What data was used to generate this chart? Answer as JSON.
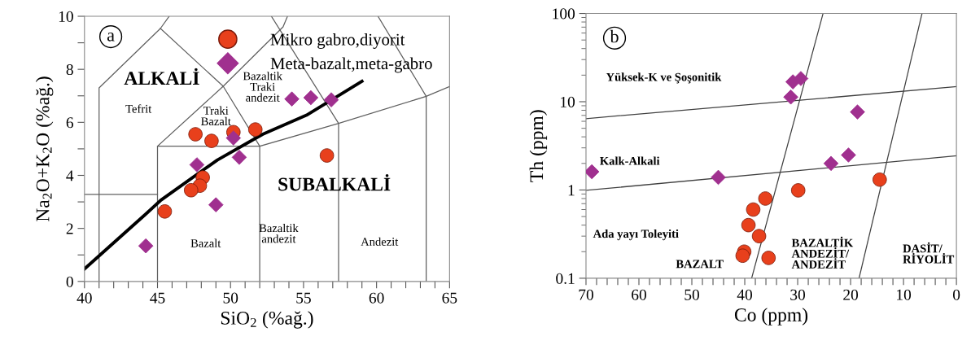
{
  "chart_data": [
    {
      "type": "scatter",
      "xlabel": "SiO$_{2}$ (%ağ.)",
      "ylabel": "Na$_{2}$O+K$_{2}$O (%ağ.)",
      "xlim": [
        40,
        65
      ],
      "ylim": [
        0,
        10
      ],
      "xticks": [
        40,
        {
          "value": 41,
          "label": null
        },
        {
          "value": 42,
          "label": null
        },
        {
          "value": 43,
          "label": null
        },
        {
          "value": 44,
          "label": null
        },
        45,
        {
          "value": 46,
          "label": null
        },
        {
          "value": 47,
          "label": null
        },
        {
          "value": 48,
          "label": null
        },
        {
          "value": 49,
          "label": null
        },
        50,
        {
          "value": 51,
          "label": null
        },
        {
          "value": 52,
          "label": null
        },
        {
          "value": 53,
          "label": null
        },
        {
          "value": 54,
          "label": null
        },
        55,
        {
          "value": 56,
          "label": null
        },
        {
          "value": 57,
          "label": null
        },
        {
          "value": 58,
          "label": null
        },
        {
          "value": 59,
          "label": null
        },
        60,
        {
          "value": 61,
          "label": null
        },
        {
          "value": 62,
          "label": null
        },
        {
          "value": 63,
          "label": null
        },
        {
          "value": 64,
          "label": null
        },
        65
      ],
      "yticks": [
        0,
        {
          "value": 1,
          "label": null
        },
        2,
        {
          "value": 3,
          "label": null
        },
        4,
        {
          "value": 5,
          "label": null
        },
        6,
        {
          "value": 7,
          "label": null
        },
        8,
        {
          "value": 9,
          "label": null
        },
        10
      ],
      "grid": false,
      "legend": "top right",
      "series": [
        {
          "type": "line",
          "color": "#606060",
          "x": [
            40,
            45
          ],
          "values": [
            3.28,
            3.28
          ]
        },
        {
          "type": "line",
          "color": "#606060",
          "x": [
            41,
            41,
            45.2,
            45.8
          ],
          "values": [
            0,
            7.3,
            9.54,
            10
          ]
        },
        {
          "type": "line",
          "color": "#606060",
          "x": [
            45.2,
            49.5,
            52
          ],
          "values": [
            9.54,
            7.36,
            5.1
          ]
        },
        {
          "type": "line",
          "color": "#606060",
          "x": [
            45,
            45,
            52,
            52
          ],
          "values": [
            0,
            5.1,
            5.1,
            0
          ]
        },
        {
          "type": "line",
          "color": "#606060",
          "x": [
            45,
            49.5,
            53.6,
            53.9
          ],
          "values": [
            5.1,
            7.36,
            9.6,
            10
          ]
        },
        {
          "type": "line",
          "color": "#606060",
          "x": [
            52,
            57.4,
            63.4,
            65
          ],
          "values": [
            5.1,
            5.96,
            6.98,
            7.35
          ]
        },
        {
          "type": "line",
          "color": "#606060",
          "x": [
            52.8,
            57.4,
            57.4
          ],
          "values": [
            10,
            5.96,
            0
          ]
        },
        {
          "type": "line",
          "color": "#606060",
          "x": [
            60.1,
            63.4,
            63.4
          ],
          "values": [
            10,
            6.98,
            0
          ]
        },
        {
          "type": "line",
          "color": "#000000",
          "x": [
            40,
            44.2,
            45.2,
            49.1,
            52.2,
            55.2,
            59.0
          ],
          "values": [
            0.47,
            2.54,
            3.05,
            4.58,
            5.55,
            6.27,
            7.55
          ]
        },
        {
          "name": "Mikro gabro,diyorit",
          "color": "#e8401c",
          "marker": "circle",
          "x": [
            47.6,
            48.7,
            50.2,
            51.7,
            56.6,
            48.1,
            47.9,
            47.3,
            45.5
          ],
          "values": [
            5.55,
            5.3,
            5.63,
            5.73,
            4.75,
            3.92,
            3.61,
            3.44,
            2.64
          ]
        },
        {
          "name": "Meta-bazalt,meta-gabro",
          "color": "#a0308f",
          "marker": "diamond",
          "x": [
            54.2,
            55.5,
            56.9,
            50.2,
            50.6,
            47.7,
            49.0,
            44.2
          ],
          "values": [
            6.88,
            6.93,
            6.85,
            5.41,
            4.68,
            4.4,
            2.89,
            1.34
          ]
        }
      ],
      "annotations": [
        "a",
        "ALKALİ",
        "Tefrit",
        "Traki\nBazalt",
        "Bazaltik\nTraki\nandezit",
        "SUBALKALİ",
        "Bazalt",
        "Bazaltik\nandezit",
        "Andezit"
      ]
    },
    {
      "type": "scatter",
      "xlabel": "Co (ppm)",
      "ylabel": "Th (ppm)",
      "log": "y",
      "xlim": [
        70,
        0
      ],
      "ylim": [
        0.1,
        100
      ],
      "xticks": [
        70,
        {
          "value": 68,
          "label": null
        },
        {
          "value": 66,
          "label": null
        },
        {
          "value": 64,
          "label": null
        },
        {
          "value": 62,
          "label": null
        },
        60,
        {
          "value": 58,
          "label": null
        },
        {
          "value": 56,
          "label": null
        },
        {
          "value": 54,
          "label": null
        },
        {
          "value": 52,
          "label": null
        },
        50,
        {
          "value": 48,
          "label": null
        },
        {
          "value": 46,
          "label": null
        },
        {
          "value": 44,
          "label": null
        },
        {
          "value": 42,
          "label": null
        },
        40,
        {
          "value": 38,
          "label": null
        },
        {
          "value": 36,
          "label": null
        },
        {
          "value": 34,
          "label": null
        },
        {
          "value": 32,
          "label": null
        },
        30,
        {
          "value": 28,
          "label": null
        },
        {
          "value": 26,
          "label": null
        },
        {
          "value": 24,
          "label": null
        },
        {
          "value": 22,
          "label": null
        },
        20,
        {
          "value": 18,
          "label": null
        },
        {
          "value": 16,
          "label": null
        },
        {
          "value": 14,
          "label": null
        },
        {
          "value": 12,
          "label": null
        },
        10,
        {
          "value": 8,
          "label": null
        },
        {
          "value": 6,
          "label": null
        },
        {
          "value": 4,
          "label": null
        },
        {
          "value": 2,
          "label": null
        },
        0
      ],
      "yticks": [
        0.1,
        1,
        10,
        100
      ],
      "grid": false,
      "series": [
        {
          "type": "line",
          "color": "#404040",
          "x": [
            70,
            0
          ],
          "values": [
            6.43,
            14.8
          ]
        },
        {
          "type": "line",
          "color": "#404040",
          "x": [
            70,
            0
          ],
          "values": [
            0.99,
            2.44
          ]
        },
        {
          "type": "line",
          "color": "#404040",
          "x": [
            38.7,
            25.2
          ],
          "values": [
            0.1,
            100
          ]
        },
        {
          "type": "line",
          "color": "#404040",
          "x": [
            18.4,
            6.5
          ],
          "values": [
            0.1,
            100
          ]
        },
        {
          "color": "#a0308f",
          "marker": "diamond",
          "x": [
            30.9,
            29.4,
            31.3,
            18.7,
            20.4,
            23.7,
            45.0,
            68.9
          ],
          "values": [
            16.8,
            18.3,
            11.3,
            7.65,
            2.49,
            2.0,
            1.39,
            1.61
          ]
        },
        {
          "color": "#e8401c",
          "marker": "circle",
          "x": [
            14.5,
            29.9,
            36.1,
            38.4,
            39.3,
            37.3,
            40.1,
            40.4,
            35.5
          ],
          "values": [
            1.31,
            0.99,
            0.8,
            0.6,
            0.4,
            0.3,
            0.2,
            0.18,
            0.17
          ]
        }
      ],
      "annotations": [
        "b",
        "Yüksek-K ve Şoşonitik",
        "Kalk-Alkali",
        "Ada yayı Toleyiti",
        "BAZALT",
        "BAZALTİK\nANDEZİT/\nANDEZİT",
        "DASİT/\nRİYOLİT"
      ]
    }
  ]
}
